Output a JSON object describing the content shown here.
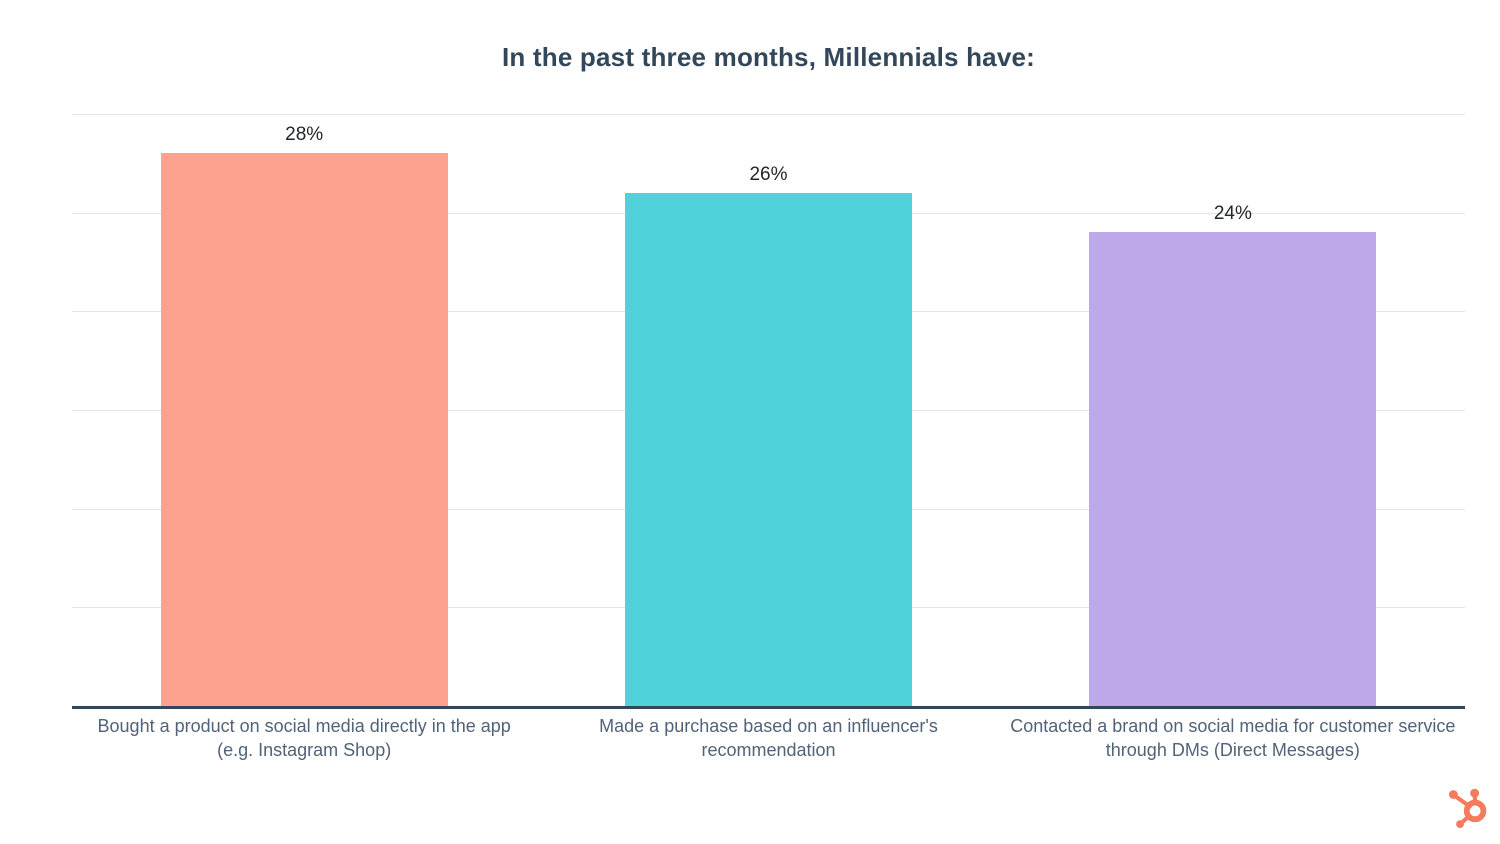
{
  "title": "In the past three months, Millennials have:",
  "chart_data": {
    "type": "bar",
    "title": "In the past three months, Millennials have:",
    "categories": [
      "Bought a product on social media directly in the app (e.g. Instagram Shop)",
      "Made a purchase based on an influencer's recommendation",
      "Contacted a brand on social media for customer service through DMs (Direct Messages)"
    ],
    "values": [
      28,
      26,
      24
    ],
    "value_labels": [
      "28%",
      "26%",
      "24%"
    ],
    "bar_colors": [
      "#FCA28E",
      "#4FD2DA",
      "#BDA9E9"
    ],
    "xlabel": "",
    "ylabel": "",
    "ylim": [
      0,
      30
    ],
    "gridline_step": 5,
    "grid": true,
    "legend": false,
    "y_axis_ticks_visible": false
  },
  "theme": {
    "background_color": "#FFFFFF",
    "title_color": "#33475B",
    "axis_line_color": "#33475B",
    "gridline_color": "#E2E2E8",
    "value_label_color": "#232629",
    "category_label_color": "#506379"
  },
  "branding": {
    "logo_icon": "hubspot-sprocket-icon",
    "logo_color": "#F47B5D"
  }
}
